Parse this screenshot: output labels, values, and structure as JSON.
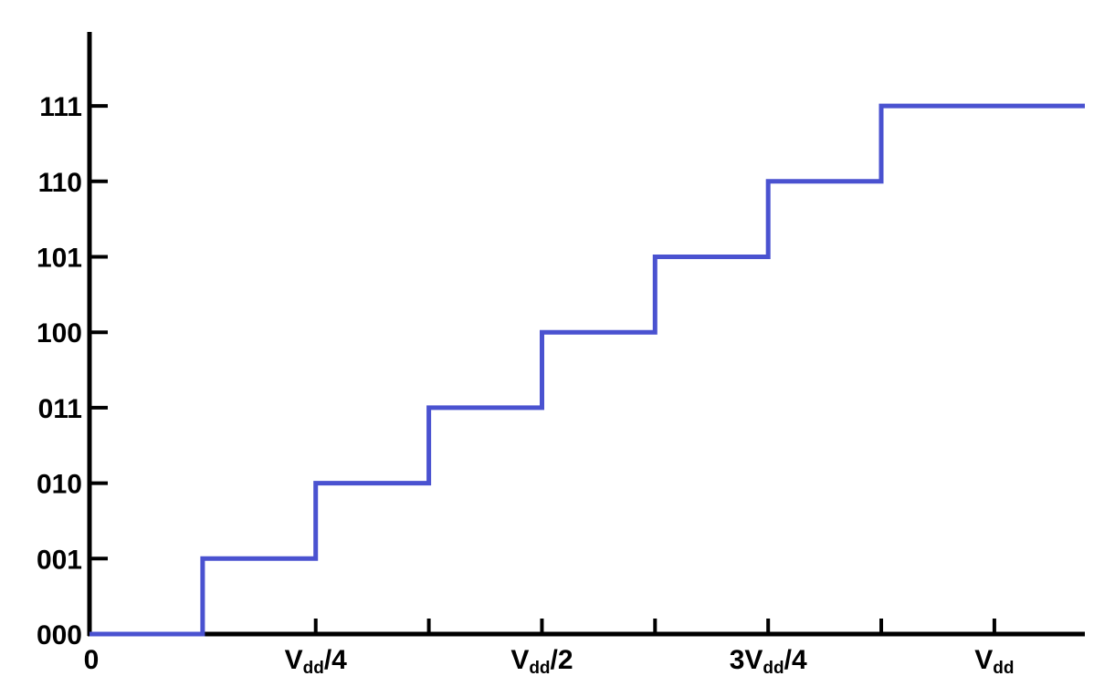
{
  "chart_data": {
    "type": "line",
    "subtype": "step",
    "title": "",
    "xlabel": "",
    "ylabel": "",
    "x_ticks": [
      {
        "value": 0,
        "label": "0"
      },
      {
        "value": 0.25,
        "label": "V_dd/4",
        "main": "V",
        "sub": "dd",
        "suffix": "/4"
      },
      {
        "value": 0.5,
        "label": "V_dd/2",
        "main": "V",
        "sub": "dd",
        "suffix": "/2"
      },
      {
        "value": 0.75,
        "label": "3V_dd/4",
        "main": "3V",
        "sub": "dd",
        "suffix": "/4"
      },
      {
        "value": 1.0,
        "label": "V_dd",
        "main": "V",
        "sub": "dd",
        "suffix": ""
      }
    ],
    "x_minor_ticks": [
      0.375,
      0.625,
      0.875
    ],
    "y_ticks": [
      "000",
      "001",
      "010",
      "011",
      "100",
      "101",
      "110",
      "111"
    ],
    "y_values": [
      0,
      1,
      2,
      3,
      4,
      5,
      6,
      7
    ],
    "series": [
      {
        "color": "#4a52d0",
        "x": [
          0,
          0.125,
          0.125,
          0.25,
          0.25,
          0.375,
          0.375,
          0.5,
          0.5,
          0.625,
          0.625,
          0.75,
          0.75,
          0.875,
          0.875,
          1.1
        ],
        "y": [
          0,
          0,
          1,
          1,
          2,
          2,
          3,
          3,
          4,
          4,
          5,
          5,
          6,
          6,
          7,
          7
        ]
      }
    ],
    "xlim": [
      0,
      1.1
    ],
    "ylim": [
      0,
      7
    ],
    "grid": false,
    "legend": "none"
  }
}
